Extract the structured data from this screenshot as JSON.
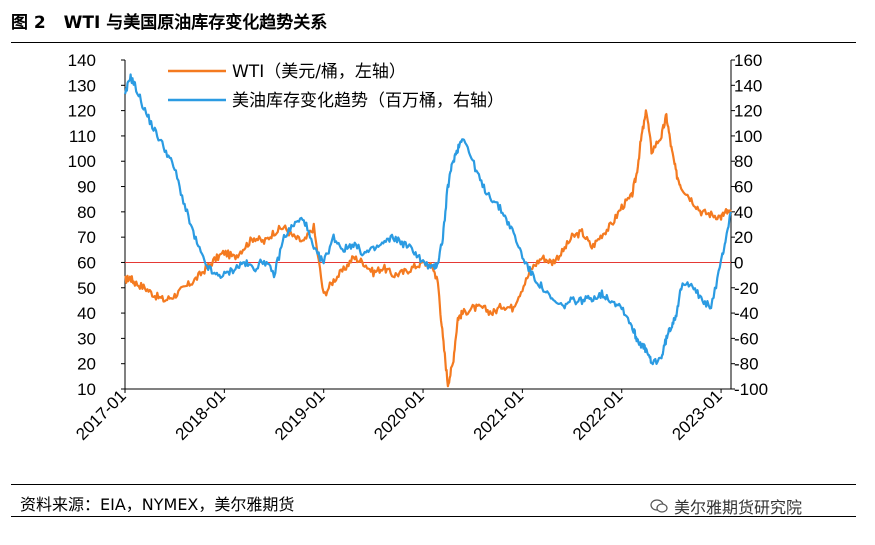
{
  "header": {
    "figure_label": "图 2",
    "title": "WTI 与美国原油库存变化趋势关系"
  },
  "footer": {
    "source": "资料来源：EIA，NYMEX，美尔雅期货",
    "watermark": "美尔雅期货研究院"
  },
  "colors": {
    "wti": "#F47A20",
    "inventory": "#2B9BE2",
    "zero_line": "#E53935",
    "axis": "#000000"
  },
  "chart_data": {
    "type": "line",
    "title": "WTI 与美国原油库存变化趋势关系",
    "x_dates": [
      2017.0,
      2017.05,
      2017.1,
      2017.2,
      2017.3,
      2017.4,
      2017.5,
      2017.6,
      2017.7,
      2017.8,
      2017.9,
      2018.0,
      2018.1,
      2018.2,
      2018.3,
      2018.4,
      2018.5,
      2018.6,
      2018.7,
      2018.8,
      2018.9,
      2019.0,
      2019.1,
      2019.2,
      2019.3,
      2019.4,
      2019.5,
      2019.6,
      2019.7,
      2019.8,
      2019.9,
      2020.0,
      2020.1,
      2020.15,
      2020.2,
      2020.25,
      2020.3,
      2020.35,
      2020.4,
      2020.5,
      2020.6,
      2020.7,
      2020.8,
      2020.9,
      2021.0,
      2021.1,
      2021.2,
      2021.3,
      2021.4,
      2021.5,
      2021.6,
      2021.7,
      2021.8,
      2021.9,
      2022.0,
      2022.1,
      2022.15,
      2022.2,
      2022.25,
      2022.3,
      2022.4,
      2022.45,
      2022.5,
      2022.55,
      2022.6,
      2022.7,
      2022.8,
      2022.9,
      2023.0,
      2023.05,
      2023.1
    ],
    "x_ticks": [
      "2017-01",
      "2018-01",
      "2019-01",
      "2020-01",
      "2021-01",
      "2022-01",
      "2023-01"
    ],
    "series": [
      {
        "name": "WTI（美元/桶，左轴）",
        "axis": "left",
        "values": [
          53,
          54,
          52,
          50,
          47,
          45,
          47,
          50,
          53,
          57,
          61,
          64,
          62,
          66,
          70,
          68,
          72,
          74,
          70,
          68,
          74,
          47,
          53,
          57,
          62,
          60,
          56,
          58,
          55,
          56,
          58,
          60,
          58,
          52,
          30,
          12,
          20,
          38,
          40,
          42,
          42,
          40,
          43,
          42,
          50,
          58,
          62,
          60,
          64,
          70,
          72,
          66,
          71,
          75,
          82,
          86,
          95,
          110,
          120,
          104,
          110,
          118,
          105,
          95,
          90,
          85,
          80,
          79,
          78,
          80,
          79
        ]
      },
      {
        "name": "美油库存变化趋势（百万桶，右轴）",
        "axis": "right",
        "values": [
          131,
          147,
          140,
          120,
          104,
          90,
          74,
          45,
          20,
          0,
          -10,
          -10,
          -5,
          0,
          -5,
          2,
          -10,
          20,
          30,
          35,
          10,
          0,
          20,
          10,
          15,
          7,
          10,
          15,
          20,
          15,
          10,
          0,
          -5,
          0,
          20,
          60,
          80,
          90,
          100,
          80,
          60,
          50,
          40,
          25,
          5,
          -10,
          -20,
          -30,
          -35,
          -30,
          -30,
          -28,
          -25,
          -30,
          -35,
          -50,
          -60,
          -65,
          -70,
          -80,
          -75,
          -60,
          -50,
          -40,
          -20,
          -15,
          -30,
          -35,
          0,
          20,
          40
        ]
      }
    ],
    "left_axis": {
      "ylim": [
        10,
        140
      ],
      "ticks": [
        10,
        20,
        30,
        40,
        50,
        60,
        70,
        80,
        90,
        100,
        110,
        120,
        130,
        140
      ]
    },
    "right_axis": {
      "ylim": [
        -100,
        160
      ],
      "ticks": [
        -100,
        -80,
        -60,
        -40,
        -20,
        0,
        20,
        40,
        60,
        80,
        100,
        120,
        140,
        160
      ]
    },
    "reference_line": {
      "axis": "right",
      "value": 0
    },
    "legend_location": "top",
    "grid": false
  }
}
